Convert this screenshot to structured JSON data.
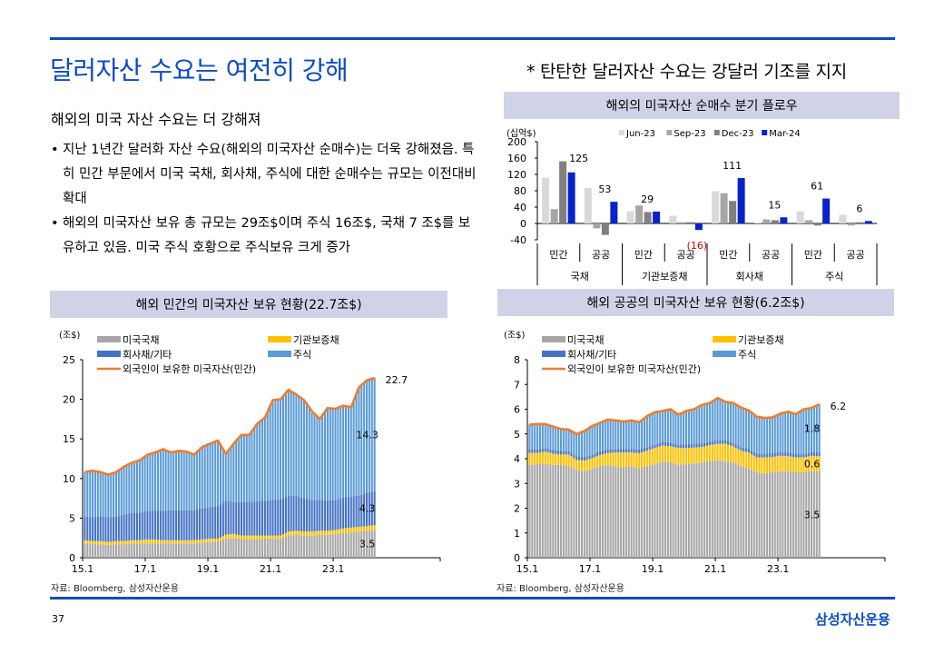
{
  "page": {
    "title": "달러자산 수요는 여전히 강해",
    "side_note": "* 탄탄한 달러자산 수요는 강달러 기조를 지지",
    "subtitle": "해외의 미국 자산 수요는 더 강해져",
    "bullets": [
      "지난 1년간 달러화 자산 수요(해외의 미국자산 순매수)는 더욱 강해졌음. 특히 민간 부문에서 미국 국채, 회사채, 주식에 대한 순매수는 규모는 이전대비 확대",
      "해외의 미국자산 보유 총 규모는 29조$이며 주식 16조$, 국채 7 조$를 보유하고 있음. 미국 주식 호황으로 주식보유 크게 증가"
    ],
    "page_number": "37",
    "brand": "삼성자산운용",
    "colors": {
      "accent": "#0b4bc0",
      "header_bg": "#d0d3e8"
    }
  },
  "chart_data": [
    {
      "id": "quarterly-flow",
      "type": "bar",
      "title": "해외의 미국자산 순매수 분기 플로우",
      "ylabel": "(십억$)",
      "ylim": [
        -40,
        200
      ],
      "yticks": [
        -40,
        0,
        40,
        80,
        120,
        160,
        200
      ],
      "categories": [
        "민간",
        "공공",
        "민간",
        "공공",
        "민간",
        "공공",
        "민간",
        "공공"
      ],
      "groups": [
        {
          "label": "국채",
          "span": 2
        },
        {
          "label": "기관보증채",
          "span": 2
        },
        {
          "label": "회사채",
          "span": 2
        },
        {
          "label": "주식",
          "span": 2
        }
      ],
      "legend_position": "top",
      "series": [
        {
          "name": "Jun-23",
          "color": "#d9d9d9",
          "values": [
            112,
            87,
            30,
            19,
            79,
            2,
            30,
            21
          ]
        },
        {
          "name": "Sep-23",
          "color": "#a6a6a6",
          "values": [
            35,
            -12,
            44,
            3,
            74,
            10,
            8,
            -5
          ]
        },
        {
          "name": "Dec-23",
          "color": "#808080",
          "values": [
            152,
            -28,
            28,
            3,
            55,
            8,
            -5,
            3
          ]
        },
        {
          "name": "Mar-24",
          "color": "#0a22cc",
          "values": [
            125,
            53,
            29,
            -16,
            111,
            15,
            61,
            6
          ]
        }
      ],
      "data_labels": [
        "125",
        "53",
        "29",
        "(16)",
        "111",
        "15",
        "61",
        "6"
      ],
      "negative_label_color": "#d40000"
    },
    {
      "id": "private-holdings",
      "type": "bar",
      "stacked": true,
      "title": "해외 민간의 미국자산 보유 현황(22.7조$)",
      "ylabel": "(조$)",
      "ylim": [
        0,
        25
      ],
      "yticks": [
        0,
        5,
        10,
        15,
        20,
        25
      ],
      "xticks": [
        "15.1",
        "17.1",
        "19.1",
        "21.1",
        "23.1"
      ],
      "x_start": "2015-01",
      "x_end": "2024-03",
      "x_frequency": "quarterly anchors, monthly bars",
      "source": "자료: Bloomberg, 삼성자산운용",
      "legend": [
        {
          "name": "미국국채",
          "color": "#a6a6a6",
          "kind": "bar"
        },
        {
          "name": "기관보증채",
          "color": "#ffc000",
          "kind": "bar"
        },
        {
          "name": "회사채/기타",
          "color": "#4472c4",
          "kind": "bar"
        },
        {
          "name": "주식",
          "color": "#5b9bd5",
          "kind": "bar"
        },
        {
          "name": "외국인이 보유한 미국자산(민간)",
          "color": "#ed7d31",
          "kind": "line"
        }
      ],
      "series": [
        {
          "name": "미국국채",
          "values": [
            1.8,
            1.7,
            1.7,
            1.6,
            1.7,
            1.7,
            1.8,
            1.8,
            1.8,
            1.8,
            1.8,
            1.8,
            1.8,
            1.8,
            1.8,
            1.9,
            2.0,
            2.0,
            2.4,
            2.5,
            2.3,
            2.3,
            2.3,
            2.4,
            2.4,
            2.4,
            2.8,
            2.9,
            2.8,
            2.8,
            2.9,
            2.9,
            3.0,
            3.1,
            3.2,
            3.3,
            3.4,
            3.5
          ]
        },
        {
          "name": "기관보증채",
          "values": [
            0.4,
            0.4,
            0.4,
            0.4,
            0.4,
            0.4,
            0.4,
            0.4,
            0.5,
            0.5,
            0.4,
            0.4,
            0.4,
            0.4,
            0.4,
            0.4,
            0.4,
            0.4,
            0.5,
            0.5,
            0.5,
            0.5,
            0.5,
            0.4,
            0.4,
            0.4,
            0.5,
            0.5,
            0.5,
            0.5,
            0.5,
            0.5,
            0.5,
            0.6,
            0.6,
            0.6,
            0.6,
            0.6
          ]
        },
        {
          "name": "회사채/기타",
          "values": [
            3.0,
            3.0,
            3.1,
            3.1,
            3.1,
            3.3,
            3.5,
            3.5,
            3.6,
            3.6,
            3.7,
            3.8,
            3.8,
            3.8,
            3.8,
            3.9,
            4.0,
            4.1,
            4.3,
            4.0,
            4.2,
            4.3,
            4.3,
            4.4,
            4.5,
            4.6,
            4.5,
            4.4,
            4.2,
            4.0,
            3.9,
            3.8,
            3.8,
            3.9,
            3.9,
            4.0,
            4.2,
            4.3
          ]
        },
        {
          "name": "주식",
          "values": [
            5.6,
            5.9,
            5.6,
            5.4,
            5.6,
            6.1,
            6.3,
            6.6,
            7.1,
            7.4,
            7.8,
            7.3,
            7.5,
            7.4,
            7.0,
            7.8,
            8.0,
            8.3,
            5.9,
            7.4,
            8.5,
            8.4,
            9.8,
            10.5,
            12.6,
            12.6,
            13.4,
            12.8,
            12.4,
            11.2,
            10.2,
            11.7,
            11.5,
            11.6,
            11.3,
            13.3,
            14.2,
            14.3
          ]
        },
        {
          "name": "외국인이 보유한 미국자산(민간)",
          "values": [
            10.8,
            11.0,
            10.8,
            10.5,
            10.8,
            11.5,
            12.0,
            12.3,
            13.0,
            13.3,
            13.7,
            13.3,
            13.5,
            13.4,
            13.0,
            14.0,
            14.4,
            14.8,
            13.1,
            14.4,
            15.5,
            15.5,
            16.9,
            17.7,
            19.9,
            20.0,
            21.2,
            20.6,
            19.9,
            18.5,
            17.5,
            18.9,
            18.8,
            19.2,
            19.0,
            21.5,
            22.4,
            22.7
          ]
        }
      ],
      "end_labels": {
        "total": "22.7",
        "equity": "14.3",
        "corporate": "4.3",
        "treasury": "3.5"
      }
    },
    {
      "id": "official-holdings",
      "type": "bar",
      "stacked": true,
      "title": "해외 공공의 미국자산 보유 현황(6.2조$)",
      "ylabel": "(조$)",
      "ylim": [
        0,
        8
      ],
      "yticks": [
        0,
        1,
        2,
        3,
        4,
        5,
        6,
        7,
        8
      ],
      "xticks": [
        "15.1",
        "17.1",
        "19.1",
        "21.1",
        "23.1"
      ],
      "x_start": "2015-01",
      "x_end": "2024-03",
      "x_frequency": "quarterly anchors, monthly bars",
      "source": "자료: Bloomberg, 삼성자산운용",
      "legend": [
        {
          "name": "미국국채",
          "color": "#a6a6a6",
          "kind": "bar"
        },
        {
          "name": "기관보증채",
          "color": "#ffc000",
          "kind": "bar"
        },
        {
          "name": "회사채/기타",
          "color": "#4472c4",
          "kind": "bar"
        },
        {
          "name": "주식",
          "color": "#5b9bd5",
          "kind": "bar"
        },
        {
          "name": "외국인이 보유한 미국자산(민간)",
          "color": "#ed7d31",
          "kind": "line"
        }
      ],
      "series": [
        {
          "name": "미국국채",
          "values": [
            3.75,
            3.78,
            3.8,
            3.75,
            3.75,
            3.72,
            3.55,
            3.5,
            3.6,
            3.7,
            3.75,
            3.7,
            3.65,
            3.7,
            3.62,
            3.7,
            3.78,
            3.88,
            3.85,
            3.75,
            3.78,
            3.8,
            3.85,
            3.9,
            3.95,
            3.9,
            3.85,
            3.7,
            3.6,
            3.45,
            3.4,
            3.45,
            3.5,
            3.5,
            3.45,
            3.45,
            3.5,
            3.5
          ]
        },
        {
          "name": "기관보증채",
          "values": [
            0.48,
            0.45,
            0.48,
            0.45,
            0.42,
            0.45,
            0.4,
            0.42,
            0.42,
            0.45,
            0.48,
            0.55,
            0.6,
            0.55,
            0.6,
            0.62,
            0.65,
            0.65,
            0.65,
            0.68,
            0.65,
            0.65,
            0.62,
            0.65,
            0.65,
            0.7,
            0.65,
            0.62,
            0.65,
            0.6,
            0.65,
            0.62,
            0.62,
            0.6,
            0.6,
            0.6,
            0.62,
            0.6
          ]
        },
        {
          "name": "회사채/기타",
          "values": [
            0.15,
            0.15,
            0.15,
            0.15,
            0.15,
            0.15,
            0.15,
            0.15,
            0.15,
            0.15,
            0.15,
            0.15,
            0.15,
            0.15,
            0.15,
            0.15,
            0.15,
            0.15,
            0.15,
            0.15,
            0.15,
            0.15,
            0.15,
            0.15,
            0.15,
            0.15,
            0.15,
            0.15,
            0.15,
            0.15,
            0.15,
            0.15,
            0.15,
            0.15,
            0.15,
            0.15,
            0.15,
            0.15
          ]
        },
        {
          "name": "주식",
          "values": [
            1.0,
            1.02,
            0.97,
            0.95,
            0.88,
            0.85,
            0.9,
            1.05,
            1.15,
            1.15,
            1.2,
            1.15,
            1.1,
            1.15,
            1.1,
            1.25,
            1.3,
            1.25,
            1.35,
            1.2,
            1.35,
            1.4,
            1.55,
            1.55,
            1.7,
            1.55,
            1.6,
            1.6,
            1.55,
            1.5,
            1.45,
            1.45,
            1.55,
            1.65,
            1.6,
            1.8,
            1.78,
            1.8
          ]
        },
        {
          "name": "외국인이 보유한 미국자산(민간)",
          "values": [
            5.38,
            5.4,
            5.4,
            5.3,
            5.2,
            5.17,
            5.0,
            5.12,
            5.32,
            5.45,
            5.58,
            5.55,
            5.5,
            5.55,
            5.47,
            5.72,
            5.88,
            5.93,
            6.0,
            5.78,
            5.93,
            6.0,
            6.17,
            6.25,
            6.45,
            6.3,
            6.25,
            6.07,
            5.95,
            5.7,
            5.65,
            5.67,
            5.82,
            5.9,
            5.8,
            6.0,
            6.05,
            6.2
          ]
        }
      ],
      "end_labels": {
        "total": "6.2",
        "equity": "1.8",
        "agency": "0.6",
        "treasury": "3.5"
      }
    }
  ]
}
